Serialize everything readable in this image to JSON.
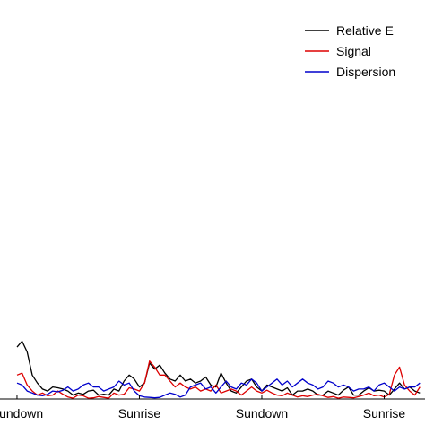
{
  "chart_data": {
    "type": "line",
    "title": "",
    "xlabel": "",
    "ylabel": "",
    "grid": false,
    "legend_position": "top-right",
    "xlim": [
      -20,
      480
    ],
    "ylim": [
      0,
      1
    ],
    "xticks": [
      {
        "value": 0,
        "label": "Sundown"
      },
      {
        "value": 144,
        "label": "Sunrise"
      },
      {
        "value": 288,
        "label": "Sundown"
      },
      {
        "value": 432,
        "label": "Sunrise"
      }
    ],
    "series": [
      {
        "name": "Relative E",
        "color": "#000000",
        "x": [
          0,
          6,
          12,
          18,
          24,
          30,
          36,
          42,
          48,
          54,
          60,
          66,
          72,
          78,
          84,
          90,
          96,
          102,
          108,
          114,
          120,
          126,
          132,
          138,
          144,
          150,
          156,
          162,
          168,
          174,
          180,
          186,
          192,
          198,
          204,
          210,
          216,
          222,
          228,
          234,
          240,
          246,
          252,
          258,
          264,
          270,
          276,
          282,
          288,
          294,
          300,
          306,
          312,
          318,
          324,
          330,
          336,
          342,
          348,
          354,
          360,
          366,
          372,
          378,
          384,
          390,
          396,
          402,
          408,
          414,
          420,
          426,
          432,
          438,
          444,
          450,
          456,
          462,
          468,
          474
        ],
        "y": [
          0.13,
          0.145,
          0.118,
          0.06,
          0.04,
          0.025,
          0.02,
          0.03,
          0.028,
          0.025,
          0.02,
          0.01,
          0.015,
          0.012,
          0.02,
          0.022,
          0.01,
          0.012,
          0.01,
          0.025,
          0.02,
          0.045,
          0.06,
          0.05,
          0.03,
          0.04,
          0.09,
          0.075,
          0.085,
          0.065,
          0.05,
          0.045,
          0.06,
          0.045,
          0.05,
          0.04,
          0.045,
          0.055,
          0.035,
          0.03,
          0.065,
          0.04,
          0.02,
          0.015,
          0.03,
          0.045,
          0.05,
          0.03,
          0.02,
          0.035,
          0.03,
          0.025,
          0.02,
          0.028,
          0.01,
          0.02,
          0.02,
          0.025,
          0.02,
          0.01,
          0.01,
          0.02,
          0.015,
          0.01,
          0.022,
          0.03,
          0.01,
          0.01,
          0.02,
          0.028,
          0.02,
          0.022,
          0.02,
          0.01,
          0.025,
          0.04,
          0.025,
          0.03,
          0.02,
          0.015
        ]
      },
      {
        "name": "Signal",
        "color": "#dd0000",
        "x": [
          0,
          6,
          12,
          18,
          24,
          30,
          36,
          42,
          48,
          54,
          60,
          66,
          72,
          78,
          84,
          90,
          96,
          102,
          108,
          114,
          120,
          126,
          132,
          138,
          144,
          150,
          156,
          162,
          168,
          174,
          180,
          186,
          192,
          198,
          204,
          210,
          216,
          222,
          228,
          234,
          240,
          246,
          252,
          258,
          264,
          270,
          276,
          282,
          288,
          294,
          300,
          306,
          312,
          318,
          324,
          330,
          336,
          342,
          348,
          354,
          360,
          366,
          372,
          378,
          384,
          390,
          396,
          402,
          408,
          414,
          420,
          426,
          432,
          438,
          444,
          450,
          456,
          462,
          468,
          474
        ],
        "y": [
          0.06,
          0.065,
          0.035,
          0.02,
          0.01,
          0.015,
          0.008,
          0.01,
          0.02,
          0.012,
          0.005,
          0.002,
          0.01,
          0.008,
          0.002,
          0.003,
          0.006,
          0.004,
          0.002,
          0.015,
          0.01,
          0.012,
          0.028,
          0.025,
          0.02,
          0.04,
          0.095,
          0.08,
          0.06,
          0.06,
          0.045,
          0.03,
          0.04,
          0.03,
          0.025,
          0.03,
          0.02,
          0.025,
          0.02,
          0.035,
          0.015,
          0.02,
          0.025,
          0.02,
          0.01,
          0.02,
          0.03,
          0.02,
          0.015,
          0.022,
          0.015,
          0.01,
          0.008,
          0.015,
          0.01,
          0.005,
          0.008,
          0.006,
          0.01,
          0.012,
          0.008,
          0.004,
          0.006,
          0.002,
          0.005,
          0.004,
          0.003,
          0.006,
          0.01,
          0.015,
          0.008,
          0.01,
          0.005,
          0.012,
          0.06,
          0.08,
          0.035,
          0.02,
          0.01,
          0.03
        ]
      },
      {
        "name": "Dispersion",
        "color": "#0000cc",
        "x": [
          0,
          6,
          12,
          18,
          24,
          30,
          36,
          42,
          48,
          54,
          60,
          66,
          72,
          78,
          84,
          90,
          96,
          102,
          108,
          114,
          120,
          126,
          132,
          138,
          144,
          150,
          156,
          162,
          168,
          174,
          180,
          186,
          192,
          198,
          204,
          210,
          216,
          222,
          228,
          234,
          240,
          246,
          252,
          258,
          264,
          270,
          276,
          282,
          288,
          294,
          300,
          306,
          312,
          318,
          324,
          330,
          336,
          342,
          348,
          354,
          360,
          366,
          372,
          378,
          384,
          390,
          396,
          402,
          408,
          414,
          420,
          426,
          432,
          438,
          444,
          450,
          456,
          462,
          468,
          474
        ],
        "y": [
          0.04,
          0.035,
          0.02,
          0.015,
          0.01,
          0.008,
          0.012,
          0.02,
          0.018,
          0.022,
          0.03,
          0.02,
          0.025,
          0.035,
          0.04,
          0.03,
          0.03,
          0.02,
          0.025,
          0.03,
          0.045,
          0.035,
          0.04,
          0.02,
          0.008,
          0.005,
          0.004,
          0.003,
          0.004,
          0.01,
          0.015,
          0.012,
          0.005,
          0.01,
          0.03,
          0.035,
          0.04,
          0.025,
          0.03,
          0.015,
          0.03,
          0.045,
          0.03,
          0.025,
          0.04,
          0.035,
          0.05,
          0.04,
          0.02,
          0.03,
          0.04,
          0.05,
          0.035,
          0.045,
          0.03,
          0.04,
          0.05,
          0.04,
          0.035,
          0.025,
          0.03,
          0.045,
          0.04,
          0.03,
          0.035,
          0.03,
          0.02,
          0.025,
          0.025,
          0.03,
          0.02,
          0.035,
          0.04,
          0.03,
          0.02,
          0.03,
          0.025,
          0.03,
          0.03,
          0.04
        ]
      }
    ]
  }
}
